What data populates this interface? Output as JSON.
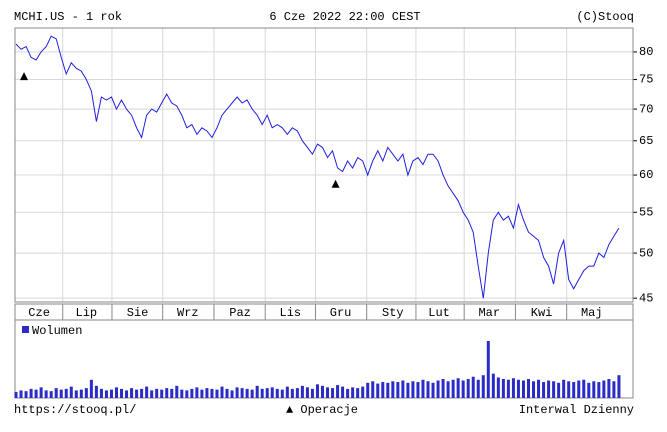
{
  "header": {
    "left": "MCHI.US - 1 rok",
    "center": "6 Cze 2022 22:00 CEST",
    "right": "(C)Stooq"
  },
  "footer": {
    "left": "https://stooq.pl/",
    "center": "▲ Operacje",
    "right": "Interwal Dzienny"
  },
  "chart_data": [
    {
      "type": "line",
      "log_y": true,
      "grid": true,
      "ylim": [
        44.6,
        84.6
      ],
      "yticks": [
        80,
        75,
        70,
        65,
        60,
        55,
        50,
        45
      ],
      "xlim": [
        -0.2,
        122.8
      ],
      "xticks": [
        {
          "value": 4.6,
          "label": "Cze"
        },
        {
          "value": 14,
          "label": "Lip"
        },
        {
          "value": 24.2,
          "label": "Sie"
        },
        {
          "value": 34.2,
          "label": "Wrz"
        },
        {
          "value": 44.6,
          "label": "Paz"
        },
        {
          "value": 54.6,
          "label": "Lis"
        },
        {
          "value": 64.6,
          "label": "Gru"
        },
        {
          "value": 75,
          "label": "Sty"
        },
        {
          "value": 84.2,
          "label": "Lut"
        },
        {
          "value": 94.2,
          "label": "Mar"
        },
        {
          "value": 104.6,
          "label": "Kwi"
        },
        {
          "value": 114.6,
          "label": "Maj"
        }
      ],
      "series": [
        {
          "color": "#1f1fe0",
          "values": [
            81.5,
            80.5,
            81,
            79,
            78.5,
            80,
            81,
            83,
            82.5,
            79,
            76,
            78,
            77,
            76.5,
            75,
            73,
            68,
            72,
            71.5,
            72,
            70,
            71.5,
            70,
            69,
            67,
            65.5,
            69,
            70,
            69.5,
            71,
            72.5,
            71,
            70.5,
            69,
            67,
            67.5,
            66,
            67,
            66.5,
            65.5,
            67,
            69,
            70,
            71,
            72,
            71,
            71.5,
            70,
            69,
            67.5,
            69,
            67,
            67.5,
            67,
            66,
            67,
            66.5,
            65,
            64,
            63,
            64.5,
            64,
            62.5,
            63.5,
            61,
            60.5,
            62,
            61,
            62.5,
            62,
            60,
            62,
            63.5,
            62,
            64,
            63,
            62,
            63,
            60,
            62,
            62.5,
            61.5,
            63,
            63,
            62,
            60,
            58.5,
            57.5,
            56.5,
            55,
            54,
            52.5,
            48.5,
            45,
            50,
            54,
            55,
            54,
            54.5,
            53,
            56,
            54,
            52.5,
            52,
            51.5,
            49.5,
            48.5,
            46.5,
            50,
            51.5,
            47,
            46,
            47,
            48,
            48.5,
            48.5,
            50,
            49.5,
            51,
            52,
            53
          ]
        }
      ],
      "operations": {
        "x": [
          1.6,
          63.6
        ],
        "y": [
          75.6,
          58.8
        ]
      }
    },
    {
      "type": "bar",
      "legend": "Wolumen",
      "color": "#2b2bc8",
      "ylim": [
        0,
        100
      ],
      "values": [
        8,
        10,
        9,
        12,
        11,
        14,
        10,
        9,
        13,
        11,
        12,
        15,
        10,
        11,
        13,
        24,
        16,
        12,
        10,
        11,
        14,
        12,
        10,
        13,
        11,
        12,
        15,
        10,
        12,
        11,
        13,
        12,
        16,
        11,
        10,
        12,
        14,
        11,
        13,
        12,
        11,
        15,
        12,
        10,
        14,
        13,
        12,
        11,
        16,
        12,
        13,
        14,
        12,
        11,
        15,
        12,
        13,
        16,
        14,
        12,
        18,
        16,
        14,
        13,
        17,
        15,
        12,
        14,
        13,
        15,
        20,
        22,
        19,
        21,
        20,
        22,
        21,
        23,
        20,
        22,
        21,
        24,
        22,
        20,
        23,
        25,
        22,
        24,
        26,
        23,
        25,
        28,
        24,
        30,
        75,
        32,
        27,
        25,
        24,
        26,
        24,
        23,
        25,
        22,
        24,
        21,
        23,
        22,
        20,
        24,
        22,
        21,
        23,
        24,
        20,
        22,
        21,
        23,
        25,
        22,
        30
      ]
    }
  ]
}
